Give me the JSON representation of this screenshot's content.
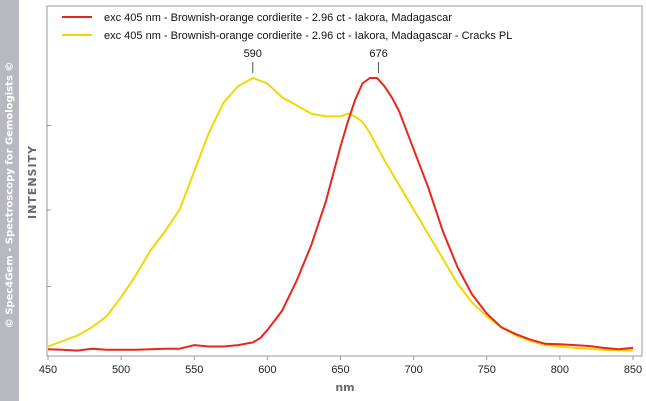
{
  "watermark": "© Spec4Gem - Spectroscopy for Gemologists ©",
  "chart_data": {
    "type": "line",
    "xlabel": "nm",
    "ylabel": "INTENSITY",
    "xlim": [
      450,
      850
    ],
    "ylim": [
      0,
      1
    ],
    "x_ticks": [
      "450",
      "500",
      "550",
      "600",
      "650",
      "700",
      "750",
      "800",
      "850"
    ],
    "y_ticks_labeled": false,
    "grid": false,
    "legend_position": "top-left",
    "series": [
      {
        "name": "exc 405 nm - Brownish-orange cordierite - 2.96 ct -  Iakora, Madagascar",
        "color": "#e8261c",
        "x": [
          450,
          460,
          470,
          480,
          490,
          500,
          510,
          520,
          530,
          540,
          550,
          560,
          570,
          580,
          590,
          595,
          600,
          610,
          620,
          630,
          640,
          650,
          655,
          660,
          665,
          670,
          675,
          680,
          685,
          690,
          700,
          710,
          720,
          730,
          740,
          750,
          760,
          770,
          780,
          790,
          800,
          810,
          820,
          830,
          840,
          850
        ],
        "y": [
          0.01,
          0.008,
          0.005,
          0.012,
          0.008,
          0.008,
          0.008,
          0.01,
          0.012,
          0.012,
          0.025,
          0.02,
          0.02,
          0.025,
          0.035,
          0.05,
          0.08,
          0.15,
          0.26,
          0.39,
          0.55,
          0.75,
          0.84,
          0.92,
          0.98,
          1.0,
          1.0,
          0.97,
          0.93,
          0.88,
          0.74,
          0.6,
          0.44,
          0.31,
          0.21,
          0.14,
          0.09,
          0.065,
          0.045,
          0.03,
          0.028,
          0.025,
          0.022,
          0.015,
          0.01,
          0.015
        ]
      },
      {
        "name": "exc 405 nm - Brownish-orange cordierite - 2.96 ct -  Iakora, Madagascar - Cracks PL",
        "color": "#f2d800",
        "x": [
          450,
          460,
          470,
          480,
          490,
          500,
          510,
          520,
          530,
          540,
          550,
          560,
          570,
          580,
          590,
          600,
          610,
          620,
          630,
          640,
          650,
          655,
          660,
          665,
          670,
          675,
          680,
          690,
          700,
          710,
          720,
          730,
          740,
          750,
          760,
          770,
          780,
          790,
          800,
          810,
          820,
          830,
          840,
          850
        ],
        "y": [
          0.02,
          0.04,
          0.06,
          0.09,
          0.13,
          0.2,
          0.28,
          0.37,
          0.44,
          0.52,
          0.66,
          0.8,
          0.91,
          0.97,
          1.0,
          0.98,
          0.93,
          0.9,
          0.87,
          0.86,
          0.86,
          0.87,
          0.86,
          0.84,
          0.8,
          0.75,
          0.7,
          0.61,
          0.52,
          0.43,
          0.34,
          0.25,
          0.18,
          0.13,
          0.09,
          0.06,
          0.04,
          0.025,
          0.02,
          0.015,
          0.012,
          0.008,
          0.006,
          0.005
        ]
      }
    ],
    "annotations": [
      {
        "label": "590",
        "x": 590,
        "y": 1.0
      },
      {
        "label": "676",
        "x": 676,
        "y": 1.0
      }
    ]
  }
}
